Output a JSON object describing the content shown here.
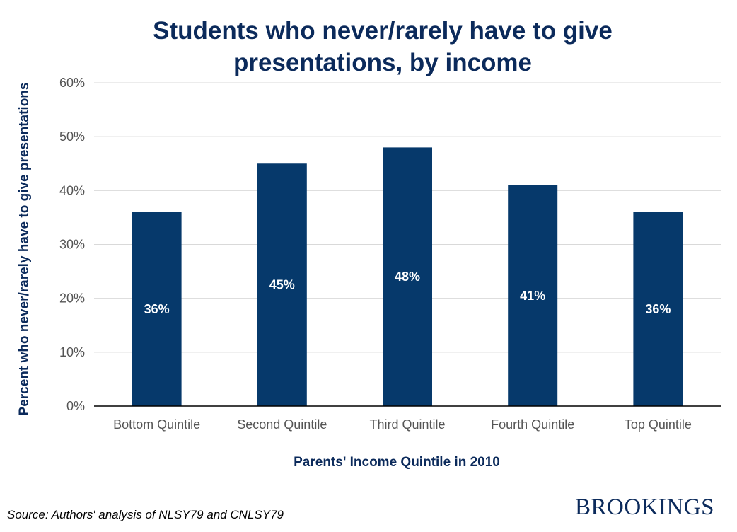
{
  "chart_data": {
    "type": "bar",
    "title_lines": [
      "Students who never/rarely have to give",
      "presentations, by income"
    ],
    "xlabel": "Parents' Income Quintile in 2010",
    "ylabel": "Percent who never/rarely have to give presentations",
    "categories": [
      "Bottom Quintile",
      "Second Quintile",
      "Third Quintile",
      "Fourth Quintile",
      "Top Quintile"
    ],
    "values": [
      36,
      45,
      48,
      41,
      36
    ],
    "data_labels": [
      "36%",
      "45%",
      "48%",
      "41%",
      "36%"
    ],
    "ylim": [
      0,
      60
    ],
    "y_ticks": [
      0,
      10,
      20,
      30,
      40,
      50,
      60
    ],
    "y_tick_labels": [
      "0%",
      "10%",
      "20%",
      "30%",
      "40%",
      "50%",
      "60%"
    ],
    "grid": true,
    "legend": "none",
    "bar_color": "#06396b"
  },
  "footer": {
    "source": "Source: Authors' analysis of NLSY79 and CNLSY79",
    "brand": "BROOKINGS"
  }
}
